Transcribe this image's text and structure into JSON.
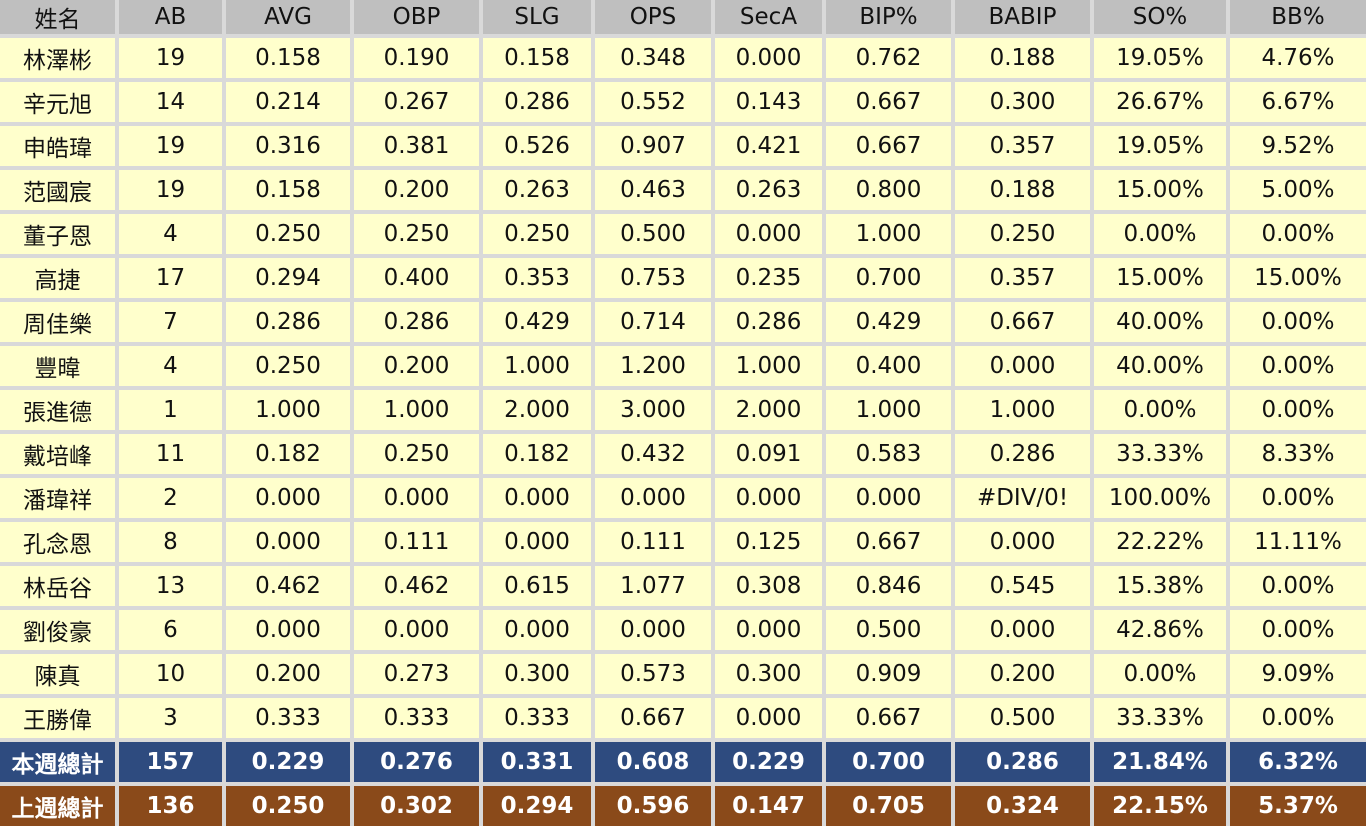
{
  "headers": [
    "姓名",
    "AB",
    "AVG",
    "OBP",
    "SLG",
    "OPS",
    "SecA",
    "BIP%",
    "BABIP",
    "SO%",
    "BB%"
  ],
  "rows": [
    [
      "林澤彬",
      "19",
      "0.158",
      "0.190",
      "0.158",
      "0.348",
      "0.000",
      "0.762",
      "0.188",
      "19.05%",
      "4.76%"
    ],
    [
      "辛元旭",
      "14",
      "0.214",
      "0.267",
      "0.286",
      "0.552",
      "0.143",
      "0.667",
      "0.300",
      "26.67%",
      "6.67%"
    ],
    [
      "申皓瑋",
      "19",
      "0.316",
      "0.381",
      "0.526",
      "0.907",
      "0.421",
      "0.667",
      "0.357",
      "19.05%",
      "9.52%"
    ],
    [
      "范國宸",
      "19",
      "0.158",
      "0.200",
      "0.263",
      "0.463",
      "0.263",
      "0.800",
      "0.188",
      "15.00%",
      "5.00%"
    ],
    [
      "董子恩",
      "4",
      "0.250",
      "0.250",
      "0.250",
      "0.500",
      "0.000",
      "1.000",
      "0.250",
      "0.00%",
      "0.00%"
    ],
    [
      "高捷",
      "17",
      "0.294",
      "0.400",
      "0.353",
      "0.753",
      "0.235",
      "0.700",
      "0.357",
      "15.00%",
      "15.00%"
    ],
    [
      "周佳樂",
      "7",
      "0.286",
      "0.286",
      "0.429",
      "0.714",
      "0.286",
      "0.429",
      "0.667",
      "40.00%",
      "0.00%"
    ],
    [
      "豐暐",
      "4",
      "0.250",
      "0.200",
      "1.000",
      "1.200",
      "1.000",
      "0.400",
      "0.000",
      "40.00%",
      "0.00%"
    ],
    [
      "張進德",
      "1",
      "1.000",
      "1.000",
      "2.000",
      "3.000",
      "2.000",
      "1.000",
      "1.000",
      "0.00%",
      "0.00%"
    ],
    [
      "戴培峰",
      "11",
      "0.182",
      "0.250",
      "0.182",
      "0.432",
      "0.091",
      "0.583",
      "0.286",
      "33.33%",
      "8.33%"
    ],
    [
      "潘瑋祥",
      "2",
      "0.000",
      "0.000",
      "0.000",
      "0.000",
      "0.000",
      "0.000",
      "#DIV/0!",
      "100.00%",
      "0.00%"
    ],
    [
      "孔念恩",
      "8",
      "0.000",
      "0.111",
      "0.000",
      "0.111",
      "0.125",
      "0.667",
      "0.000",
      "22.22%",
      "11.11%"
    ],
    [
      "林岳谷",
      "13",
      "0.462",
      "0.462",
      "0.615",
      "1.077",
      "0.308",
      "0.846",
      "0.545",
      "15.38%",
      "0.00%"
    ],
    [
      "劉俊豪",
      "6",
      "0.000",
      "0.000",
      "0.000",
      "0.000",
      "0.000",
      "0.500",
      "0.000",
      "42.86%",
      "0.00%"
    ],
    [
      "陳真",
      "10",
      "0.200",
      "0.273",
      "0.300",
      "0.573",
      "0.300",
      "0.909",
      "0.200",
      "0.00%",
      "9.09%"
    ],
    [
      "王勝偉",
      "3",
      "0.333",
      "0.333",
      "0.333",
      "0.667",
      "0.000",
      "0.667",
      "0.500",
      "33.33%",
      "0.00%"
    ]
  ],
  "totals": {
    "this_week": [
      "本週總計",
      "157",
      "0.229",
      "0.276",
      "0.331",
      "0.608",
      "0.229",
      "0.700",
      "0.286",
      "21.84%",
      "6.32%"
    ],
    "last_week": [
      "上週總計",
      "136",
      "0.250",
      "0.302",
      "0.294",
      "0.596",
      "0.147",
      "0.705",
      "0.324",
      "22.15%",
      "5.37%"
    ]
  },
  "colors": {
    "header_bg": "#bfbfbf",
    "cell_bg": "#ffffcc",
    "this_week_bg": "#2e4b7f",
    "last_week_bg": "#8a4a1a",
    "grid": "#d9d9d9"
  }
}
